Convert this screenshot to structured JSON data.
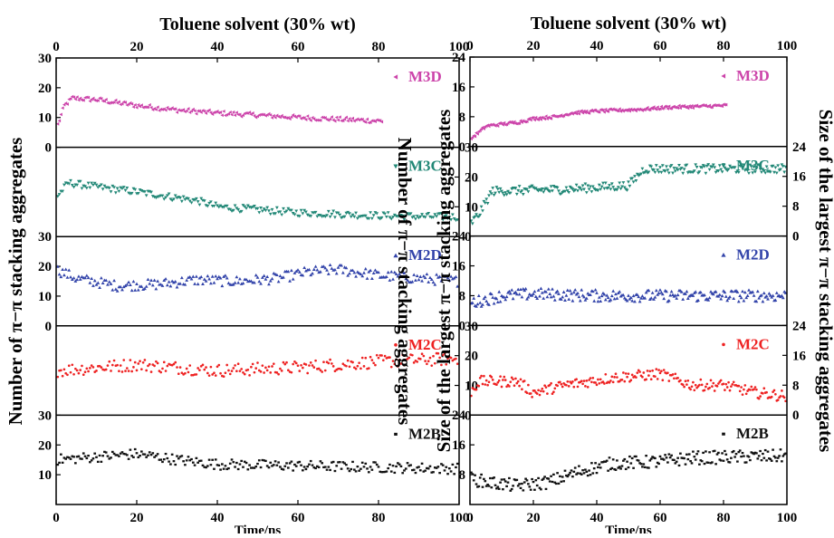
{
  "colors": {
    "M3D": "#cc44aa",
    "M3C": "#228877",
    "M2D": "#3344aa",
    "M2C": "#ee2222",
    "M2B": "#111111"
  },
  "chart_data": [
    {
      "type": "scatter",
      "top_title": "Toluene solvent (30% wt)",
      "xlabel": "Time/ns",
      "xlim": [
        0,
        100
      ],
      "x_ticks": [
        "0",
        "20",
        "40",
        "60",
        "80",
        "100"
      ],
      "ylabel_left": "Number of π−π stacking aggregates",
      "ylabel_right": "Number of π−π stacking aggregates",
      "panel_ylim": [
        0,
        30
      ],
      "panels": [
        {
          "name": "M3D",
          "color": "#cc44aa",
          "marker": "left-triangle",
          "ticks": [
            "30",
            "20",
            "10",
            "0"
          ],
          "tick_side": "left",
          "x_end": 81,
          "trend": [
            [
              0,
              6
            ],
            [
              2,
              14
            ],
            [
              4,
              16.5
            ],
            [
              10,
              16
            ],
            [
              20,
              14
            ],
            [
              30,
              12.5
            ],
            [
              40,
              11.5
            ],
            [
              50,
              10.8
            ],
            [
              60,
              10
            ],
            [
              70,
              9.4
            ],
            [
              81,
              8.8
            ]
          ],
          "noise": 0.8
        },
        {
          "name": "M3C",
          "color": "#228877",
          "marker": "down-triangle",
          "ticks": [
            "30",
            "20",
            "10",
            "0"
          ],
          "tick_side": "right",
          "x_end": 100,
          "trend": [
            [
              0,
              13
            ],
            [
              3,
              18
            ],
            [
              8,
              17
            ],
            [
              20,
              15
            ],
            [
              30,
              13
            ],
            [
              35,
              12
            ],
            [
              40,
              10
            ],
            [
              50,
              9
            ],
            [
              60,
              8
            ],
            [
              70,
              7.5
            ],
            [
              80,
              7
            ],
            [
              100,
              6.5
            ]
          ],
          "noise": 1.2
        },
        {
          "name": "M2D",
          "color": "#3344aa",
          "marker": "up-triangle",
          "ticks": [
            "30",
            "20",
            "10",
            "0"
          ],
          "tick_side": "left",
          "x_end": 100,
          "trend": [
            [
              0,
              19
            ],
            [
              5,
              16
            ],
            [
              15,
              13.5
            ],
            [
              25,
              14
            ],
            [
              35,
              15.5
            ],
            [
              45,
              15
            ],
            [
              55,
              16
            ],
            [
              62,
              18
            ],
            [
              70,
              19
            ],
            [
              80,
              17
            ],
            [
              90,
              16
            ],
            [
              100,
              15
            ]
          ],
          "noise": 1.8
        },
        {
          "name": "M2C",
          "color": "#ee2222",
          "marker": "dot",
          "ticks": [
            "30",
            "20",
            "10",
            "0"
          ],
          "tick_side": "right",
          "x_end": 100,
          "trend": [
            [
              0,
              15
            ],
            [
              20,
              17
            ],
            [
              40,
              15
            ],
            [
              60,
              16
            ],
            [
              80,
              18
            ],
            [
              100,
              19
            ]
          ],
          "noise": 2.2
        },
        {
          "name": "M2B",
          "color": "#111111",
          "marker": "square",
          "ticks": [
            "30",
            "20",
            "10"
          ],
          "tick_side": "left",
          "x_end": 100,
          "trend": [
            [
              0,
              15
            ],
            [
              10,
              16
            ],
            [
              20,
              17
            ],
            [
              30,
              15
            ],
            [
              40,
              13.5
            ],
            [
              60,
              13
            ],
            [
              80,
              12.5
            ],
            [
              100,
              12
            ]
          ],
          "noise": 1.8
        }
      ]
    },
    {
      "type": "scatter",
      "top_title": "Toluene solvent (30% wt)",
      "xlabel": "Time/ns",
      "xlim": [
        0,
        100
      ],
      "x_ticks": [
        "0",
        "20",
        "40",
        "60",
        "80",
        "100"
      ],
      "ylabel_left": "Size of the largest π−π stacking aggregates",
      "ylabel_right": "Size of the largest π−π stacking aggregates",
      "panel_ylim": [
        0,
        24
      ],
      "panels": [
        {
          "name": "M3D",
          "color": "#cc44aa",
          "marker": "left-triangle",
          "ticks": [
            "24",
            "16",
            "8",
            "0"
          ],
          "tick_side": "left",
          "x_end": 81,
          "trend": [
            [
              0,
              2
            ],
            [
              3,
              4
            ],
            [
              5,
              5.5
            ],
            [
              10,
              6
            ],
            [
              15,
              6.5
            ],
            [
              20,
              7.5
            ],
            [
              27,
              8
            ],
            [
              32,
              9
            ],
            [
              40,
              9.5
            ],
            [
              55,
              10
            ],
            [
              62,
              10.5
            ],
            [
              81,
              11
            ]
          ],
          "noise": 0.4
        },
        {
          "name": "M3C",
          "color": "#228877",
          "marker": "down-triangle",
          "ticks": [
            "24",
            "16",
            "8",
            "0"
          ],
          "tick_side": "right",
          "x_end": 100,
          "trend": [
            [
              0,
              3
            ],
            [
              3,
              6
            ],
            [
              7,
              12
            ],
            [
              30,
              12.5
            ],
            [
              50,
              13.5
            ],
            [
              55,
              18
            ],
            [
              100,
              18
            ]
          ],
          "noise": 1.2
        },
        {
          "name": "M2D",
          "color": "#3344aa",
          "marker": "up-triangle",
          "ticks": [
            "24",
            "16",
            "8",
            "0"
          ],
          "tick_side": "left",
          "x_end": 100,
          "trend": [
            [
              0,
              6
            ],
            [
              10,
              8
            ],
            [
              20,
              8.5
            ],
            [
              40,
              8
            ],
            [
              60,
              8
            ],
            [
              80,
              8
            ],
            [
              100,
              8
            ]
          ],
          "noise": 1.6
        },
        {
          "name": "M2C",
          "color": "#ee2222",
          "marker": "dot",
          "ticks": [
            "24",
            "16",
            "8",
            "0"
          ],
          "tick_side": "right",
          "x_end": 100,
          "trend": [
            [
              0,
              6
            ],
            [
              3,
              9
            ],
            [
              15,
              9
            ],
            [
              20,
              6
            ],
            [
              30,
              8
            ],
            [
              45,
              10
            ],
            [
              60,
              11
            ],
            [
              70,
              8
            ],
            [
              80,
              8
            ],
            [
              90,
              6
            ],
            [
              100,
              5
            ]
          ],
          "noise": 1.5
        },
        {
          "name": "M2B",
          "color": "#111111",
          "marker": "square",
          "ticks": [
            "24",
            "16",
            "8"
          ],
          "tick_side": "left",
          "x_end": 100,
          "trend": [
            [
              0,
              7
            ],
            [
              5,
              6
            ],
            [
              15,
              5
            ],
            [
              25,
              6
            ],
            [
              35,
              9
            ],
            [
              45,
              11
            ],
            [
              60,
              11.5
            ],
            [
              70,
              12.5
            ],
            [
              100,
              13
            ]
          ],
          "noise": 1.8
        }
      ]
    }
  ]
}
